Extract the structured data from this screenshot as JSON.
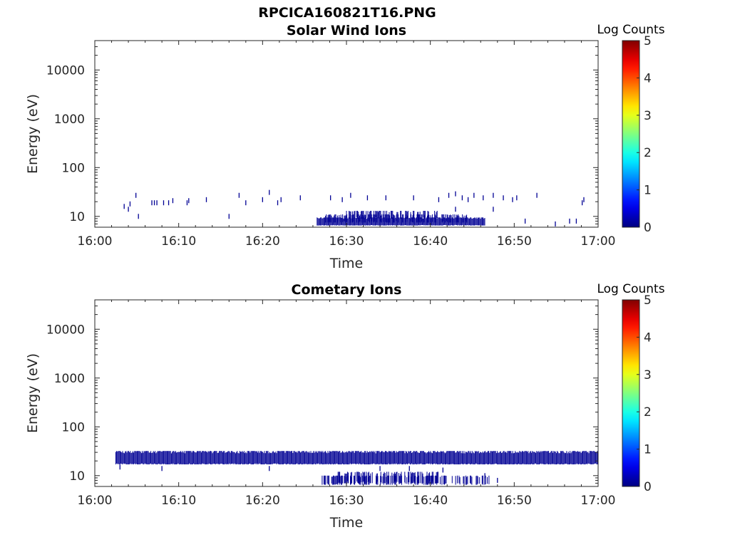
{
  "figure": {
    "title": "RPCICA160821T16.PNG"
  },
  "colors": {
    "background": "#ffffff",
    "axis": "#262626",
    "data_low": "#00008f"
  },
  "chart_data": [
    {
      "type": "heatmap",
      "title": "Solar Wind Ions",
      "xlabel": "Time",
      "ylabel": "Energy (eV)",
      "x_ticks": [
        "16:00",
        "16:10",
        "16:20",
        "16:30",
        "16:40",
        "16:50",
        "17:00"
      ],
      "xlim": [
        "16:00",
        "17:00"
      ],
      "y_scale": "log",
      "y_ticks": [
        10,
        100,
        1000,
        10000
      ],
      "y_tick_labels": [
        "10",
        "100",
        "1000",
        "10000"
      ],
      "ylim": [
        6,
        40000
      ],
      "colorbar": {
        "label": "Log Counts",
        "range": [
          0,
          5
        ],
        "ticks": [
          "0",
          "1",
          "2",
          "3",
          "4",
          "5"
        ],
        "colormap": "jet"
      },
      "bands": [
        {
          "t_start": 26.5,
          "t_end": 46.5,
          "e_low": 6.5,
          "e_high": 9.5,
          "value": 0.1
        },
        {
          "t_start": 27.5,
          "t_end": 44.5,
          "e_low": 7.5,
          "e_high": 11,
          "value": 0.1
        },
        {
          "t_start": 30.0,
          "t_end": 41.0,
          "e_low": 9.0,
          "e_high": 13,
          "value": 0.1
        }
      ],
      "points": [
        {
          "t": 3.5,
          "e": 16,
          "value": 0.1
        },
        {
          "t": 4.0,
          "e": 14,
          "value": 0.1
        },
        {
          "t": 4.2,
          "e": 18,
          "value": 0.1
        },
        {
          "t": 4.9,
          "e": 27,
          "value": 0.1
        },
        {
          "t": 5.2,
          "e": 10,
          "value": 0.1
        },
        {
          "t": 6.8,
          "e": 19,
          "value": 0.1
        },
        {
          "t": 7.1,
          "e": 19,
          "value": 0.1
        },
        {
          "t": 7.4,
          "e": 19,
          "value": 0.1
        },
        {
          "t": 8.2,
          "e": 19,
          "value": 0.1
        },
        {
          "t": 8.8,
          "e": 19,
          "value": 0.1
        },
        {
          "t": 9.3,
          "e": 21,
          "value": 0.1
        },
        {
          "t": 11.2,
          "e": 21,
          "value": 0.1
        },
        {
          "t": 11.0,
          "e": 19,
          "value": 0.1
        },
        {
          "t": 13.3,
          "e": 22,
          "value": 0.1
        },
        {
          "t": 16.0,
          "e": 10,
          "value": 0.1
        },
        {
          "t": 17.2,
          "e": 27,
          "value": 0.1
        },
        {
          "t": 18.0,
          "e": 19,
          "value": 0.1
        },
        {
          "t": 20.0,
          "e": 22,
          "value": 0.1
        },
        {
          "t": 20.8,
          "e": 31,
          "value": 0.1
        },
        {
          "t": 21.8,
          "e": 19,
          "value": 0.1
        },
        {
          "t": 22.2,
          "e": 22,
          "value": 0.1
        },
        {
          "t": 24.5,
          "e": 24,
          "value": 0.1
        },
        {
          "t": 28.1,
          "e": 24,
          "value": 0.1
        },
        {
          "t": 29.5,
          "e": 22,
          "value": 0.1
        },
        {
          "t": 30.5,
          "e": 27,
          "value": 0.1
        },
        {
          "t": 32.5,
          "e": 24,
          "value": 0.1
        },
        {
          "t": 34.7,
          "e": 24,
          "value": 0.1
        },
        {
          "t": 38.0,
          "e": 24,
          "value": 0.1
        },
        {
          "t": 41.0,
          "e": 22,
          "value": 0.1
        },
        {
          "t": 42.2,
          "e": 27,
          "value": 0.1
        },
        {
          "t": 43.0,
          "e": 29,
          "value": 0.1
        },
        {
          "t": 43.8,
          "e": 24,
          "value": 0.1
        },
        {
          "t": 44.5,
          "e": 22,
          "value": 0.1
        },
        {
          "t": 45.2,
          "e": 27,
          "value": 0.1
        },
        {
          "t": 46.3,
          "e": 24,
          "value": 0.1
        },
        {
          "t": 47.5,
          "e": 27,
          "value": 0.1
        },
        {
          "t": 48.7,
          "e": 24,
          "value": 0.1
        },
        {
          "t": 49.8,
          "e": 22,
          "value": 0.1
        },
        {
          "t": 50.3,
          "e": 24,
          "value": 0.1
        },
        {
          "t": 51.3,
          "e": 8,
          "value": 0.1
        },
        {
          "t": 52.7,
          "e": 27,
          "value": 0.1
        },
        {
          "t": 54.9,
          "e": 7,
          "value": 0.1
        },
        {
          "t": 56.6,
          "e": 8,
          "value": 0.1
        },
        {
          "t": 57.4,
          "e": 8,
          "value": 0.1
        },
        {
          "t": 58.1,
          "e": 19,
          "value": 0.1
        },
        {
          "t": 58.3,
          "e": 22,
          "value": 0.1
        },
        {
          "t": 43.0,
          "e": 14,
          "value": 0.1
        },
        {
          "t": 47.5,
          "e": 14,
          "value": 0.1
        }
      ]
    },
    {
      "type": "heatmap",
      "title": "Cometary Ions",
      "xlabel": "Time",
      "ylabel": "Energy (eV)",
      "x_ticks": [
        "16:00",
        "16:10",
        "16:20",
        "16:30",
        "16:40",
        "16:50",
        "17:00"
      ],
      "xlim": [
        "16:00",
        "17:00"
      ],
      "y_scale": "log",
      "y_ticks": [
        10,
        100,
        1000,
        10000
      ],
      "y_tick_labels": [
        "10",
        "100",
        "1000",
        "10000"
      ],
      "ylim": [
        6,
        40000
      ],
      "colorbar": {
        "label": "Log Counts",
        "range": [
          0,
          5
        ],
        "ticks": [
          "0",
          "1",
          "2",
          "3",
          "4",
          "5"
        ],
        "colormap": "jet"
      },
      "bands": [
        {
          "t_start": 2.5,
          "t_end": 60.0,
          "e_low": 17,
          "e_high": 32,
          "value": 0.1
        },
        {
          "t_start": 27.0,
          "t_end": 47.0,
          "e_low": 6.5,
          "e_high": 10,
          "value": 0.1
        },
        {
          "t_start": 29.0,
          "t_end": 41.0,
          "e_low": 7.0,
          "e_high": 12,
          "value": 0.1
        }
      ],
      "points": [
        {
          "t": 3.0,
          "e": 15,
          "value": 0.1
        },
        {
          "t": 8.0,
          "e": 14,
          "value": 0.1
        },
        {
          "t": 20.8,
          "e": 14,
          "value": 0.1
        },
        {
          "t": 34.0,
          "e": 14,
          "value": 0.1
        },
        {
          "t": 37.5,
          "e": 14,
          "value": 0.1
        },
        {
          "t": 41.5,
          "e": 13,
          "value": 0.1
        },
        {
          "t": 46.5,
          "e": 10,
          "value": 0.1
        },
        {
          "t": 48.0,
          "e": 8,
          "value": 0.1
        }
      ]
    }
  ]
}
